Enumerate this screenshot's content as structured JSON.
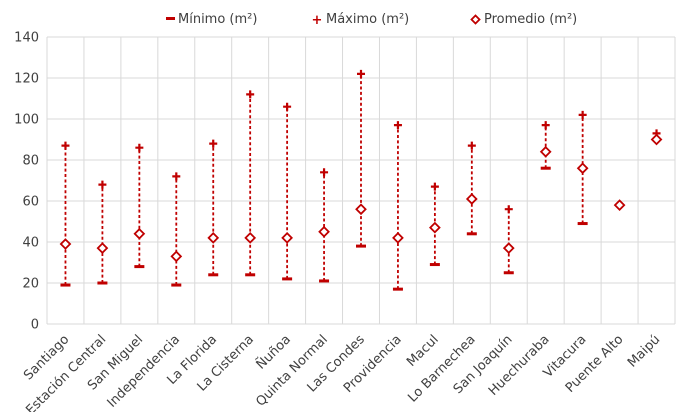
{
  "chart_data": {
    "type": "range-marker",
    "categories": [
      "Santiago",
      "Estación Central",
      "San Miguel",
      "Independencia",
      "La Florida",
      "La Cisterna",
      "Ñuñoa",
      "Quinta Normal",
      "Las Condes",
      "Providencia",
      "Macul",
      "Lo Barnechea",
      "San Joaquín",
      "Huechuraba",
      "Vitacura",
      "Puente Alto",
      "Maipú"
    ],
    "series": [
      {
        "name": "Mínimo (m²)",
        "values": [
          19,
          20,
          28,
          19,
          24,
          24,
          22,
          21,
          38,
          17,
          29,
          44,
          25,
          76,
          49,
          null,
          null
        ]
      },
      {
        "name": "Máximo (m²)",
        "values": [
          87,
          68,
          86,
          72,
          88,
          112,
          106,
          74,
          122,
          97,
          67,
          87,
          56,
          97,
          102,
          null,
          93
        ]
      },
      {
        "name": "Promedio (m²)",
        "values": [
          39,
          37,
          44,
          33,
          42,
          42,
          42,
          45,
          56,
          42,
          47,
          61,
          37,
          84,
          76,
          58,
          90
        ]
      }
    ],
    "ylim": [
      0,
      140
    ],
    "yticks": [
      0,
      20,
      40,
      60,
      80,
      100,
      120,
      140
    ],
    "grid": true,
    "legend_position": "top",
    "colors": {
      "marker": "#c00000",
      "grid": "#d9d9d9",
      "text": "#404040"
    }
  }
}
